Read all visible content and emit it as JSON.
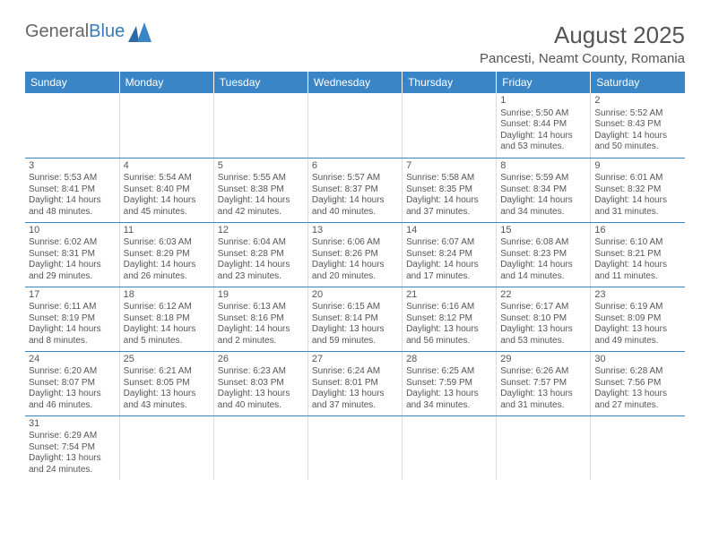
{
  "logo": {
    "text_a": "General",
    "text_b": "Blue"
  },
  "title": "August 2025",
  "location": "Pancesti, Neamt County, Romania",
  "colors": {
    "header_bg": "#3a85c6",
    "header_text": "#ffffff",
    "cell_border": "#3a85c6",
    "text": "#555555",
    "background": "#ffffff"
  },
  "day_headers": [
    "Sunday",
    "Monday",
    "Tuesday",
    "Wednesday",
    "Thursday",
    "Friday",
    "Saturday"
  ],
  "weeks": [
    [
      null,
      null,
      null,
      null,
      null,
      {
        "n": "1",
        "rise": "5:50 AM",
        "set": "8:44 PM",
        "dh": "14",
        "dm": "53"
      },
      {
        "n": "2",
        "rise": "5:52 AM",
        "set": "8:43 PM",
        "dh": "14",
        "dm": "50"
      }
    ],
    [
      {
        "n": "3",
        "rise": "5:53 AM",
        "set": "8:41 PM",
        "dh": "14",
        "dm": "48"
      },
      {
        "n": "4",
        "rise": "5:54 AM",
        "set": "8:40 PM",
        "dh": "14",
        "dm": "45"
      },
      {
        "n": "5",
        "rise": "5:55 AM",
        "set": "8:38 PM",
        "dh": "14",
        "dm": "42"
      },
      {
        "n": "6",
        "rise": "5:57 AM",
        "set": "8:37 PM",
        "dh": "14",
        "dm": "40"
      },
      {
        "n": "7",
        "rise": "5:58 AM",
        "set": "8:35 PM",
        "dh": "14",
        "dm": "37"
      },
      {
        "n": "8",
        "rise": "5:59 AM",
        "set": "8:34 PM",
        "dh": "14",
        "dm": "34"
      },
      {
        "n": "9",
        "rise": "6:01 AM",
        "set": "8:32 PM",
        "dh": "14",
        "dm": "31"
      }
    ],
    [
      {
        "n": "10",
        "rise": "6:02 AM",
        "set": "8:31 PM",
        "dh": "14",
        "dm": "29"
      },
      {
        "n": "11",
        "rise": "6:03 AM",
        "set": "8:29 PM",
        "dh": "14",
        "dm": "26"
      },
      {
        "n": "12",
        "rise": "6:04 AM",
        "set": "8:28 PM",
        "dh": "14",
        "dm": "23"
      },
      {
        "n": "13",
        "rise": "6:06 AM",
        "set": "8:26 PM",
        "dh": "14",
        "dm": "20"
      },
      {
        "n": "14",
        "rise": "6:07 AM",
        "set": "8:24 PM",
        "dh": "14",
        "dm": "17"
      },
      {
        "n": "15",
        "rise": "6:08 AM",
        "set": "8:23 PM",
        "dh": "14",
        "dm": "14"
      },
      {
        "n": "16",
        "rise": "6:10 AM",
        "set": "8:21 PM",
        "dh": "14",
        "dm": "11"
      }
    ],
    [
      {
        "n": "17",
        "rise": "6:11 AM",
        "set": "8:19 PM",
        "dh": "14",
        "dm": "8"
      },
      {
        "n": "18",
        "rise": "6:12 AM",
        "set": "8:18 PM",
        "dh": "14",
        "dm": "5"
      },
      {
        "n": "19",
        "rise": "6:13 AM",
        "set": "8:16 PM",
        "dh": "14",
        "dm": "2"
      },
      {
        "n": "20",
        "rise": "6:15 AM",
        "set": "8:14 PM",
        "dh": "13",
        "dm": "59"
      },
      {
        "n": "21",
        "rise": "6:16 AM",
        "set": "8:12 PM",
        "dh": "13",
        "dm": "56"
      },
      {
        "n": "22",
        "rise": "6:17 AM",
        "set": "8:10 PM",
        "dh": "13",
        "dm": "53"
      },
      {
        "n": "23",
        "rise": "6:19 AM",
        "set": "8:09 PM",
        "dh": "13",
        "dm": "49"
      }
    ],
    [
      {
        "n": "24",
        "rise": "6:20 AM",
        "set": "8:07 PM",
        "dh": "13",
        "dm": "46"
      },
      {
        "n": "25",
        "rise": "6:21 AM",
        "set": "8:05 PM",
        "dh": "13",
        "dm": "43"
      },
      {
        "n": "26",
        "rise": "6:23 AM",
        "set": "8:03 PM",
        "dh": "13",
        "dm": "40"
      },
      {
        "n": "27",
        "rise": "6:24 AM",
        "set": "8:01 PM",
        "dh": "13",
        "dm": "37"
      },
      {
        "n": "28",
        "rise": "6:25 AM",
        "set": "7:59 PM",
        "dh": "13",
        "dm": "34"
      },
      {
        "n": "29",
        "rise": "6:26 AM",
        "set": "7:57 PM",
        "dh": "13",
        "dm": "31"
      },
      {
        "n": "30",
        "rise": "6:28 AM",
        "set": "7:56 PM",
        "dh": "13",
        "dm": "27"
      }
    ],
    [
      {
        "n": "31",
        "rise": "6:29 AM",
        "set": "7:54 PM",
        "dh": "13",
        "dm": "24"
      },
      null,
      null,
      null,
      null,
      null,
      null
    ]
  ],
  "labels": {
    "sunrise": "Sunrise:",
    "sunset": "Sunset:",
    "daylight": "Daylight:",
    "hours": "hours",
    "and": "and",
    "minutes": "minutes."
  }
}
